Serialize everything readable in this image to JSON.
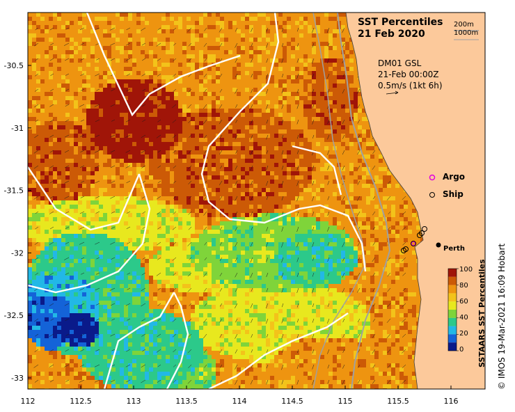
{
  "title": {
    "line1": "SST Percentiles",
    "line2": "21 Feb 2020"
  },
  "depth_labels": [
    "200m",
    "1000m"
  ],
  "model": {
    "name": "DM01 GSL",
    "time": "21-Feb 00:00Z",
    "scale": "0.5m/s (1kt 6h)"
  },
  "legend": {
    "argo": "Argo",
    "ship": "Ship"
  },
  "city": "Perth",
  "colorbar": {
    "title": "SSTAARS SST Percentiles",
    "ticks": [
      "0",
      "20",
      "40",
      "60",
      "80",
      "100"
    ],
    "colors": [
      "#0a1a8a",
      "#1463d8",
      "#22b8e6",
      "#2cc98a",
      "#7fd43a",
      "#e8e81e",
      "#f3c31a",
      "#ee9410",
      "#cc5a06",
      "#a01508"
    ]
  },
  "credit": "© IMOS 19-Mar-2021 16:09 Hobart",
  "axes": {
    "lon_ticks": [
      "112",
      "112.5",
      "113",
      "113.5",
      "114",
      "114.5",
      "115",
      "115.5",
      "116"
    ],
    "lat_ticks": [
      "-30.5",
      "-31",
      "-31.5",
      "-32",
      "-32.5",
      "-33"
    ],
    "lon_range": [
      112,
      116.3
    ],
    "lat_range": [
      -33.1,
      -30.05
    ]
  },
  "colors": {
    "land": "#fcc99b",
    "contour": "#ffffff",
    "isobath": "#a0a0a0",
    "argo": "#e000e0"
  }
}
